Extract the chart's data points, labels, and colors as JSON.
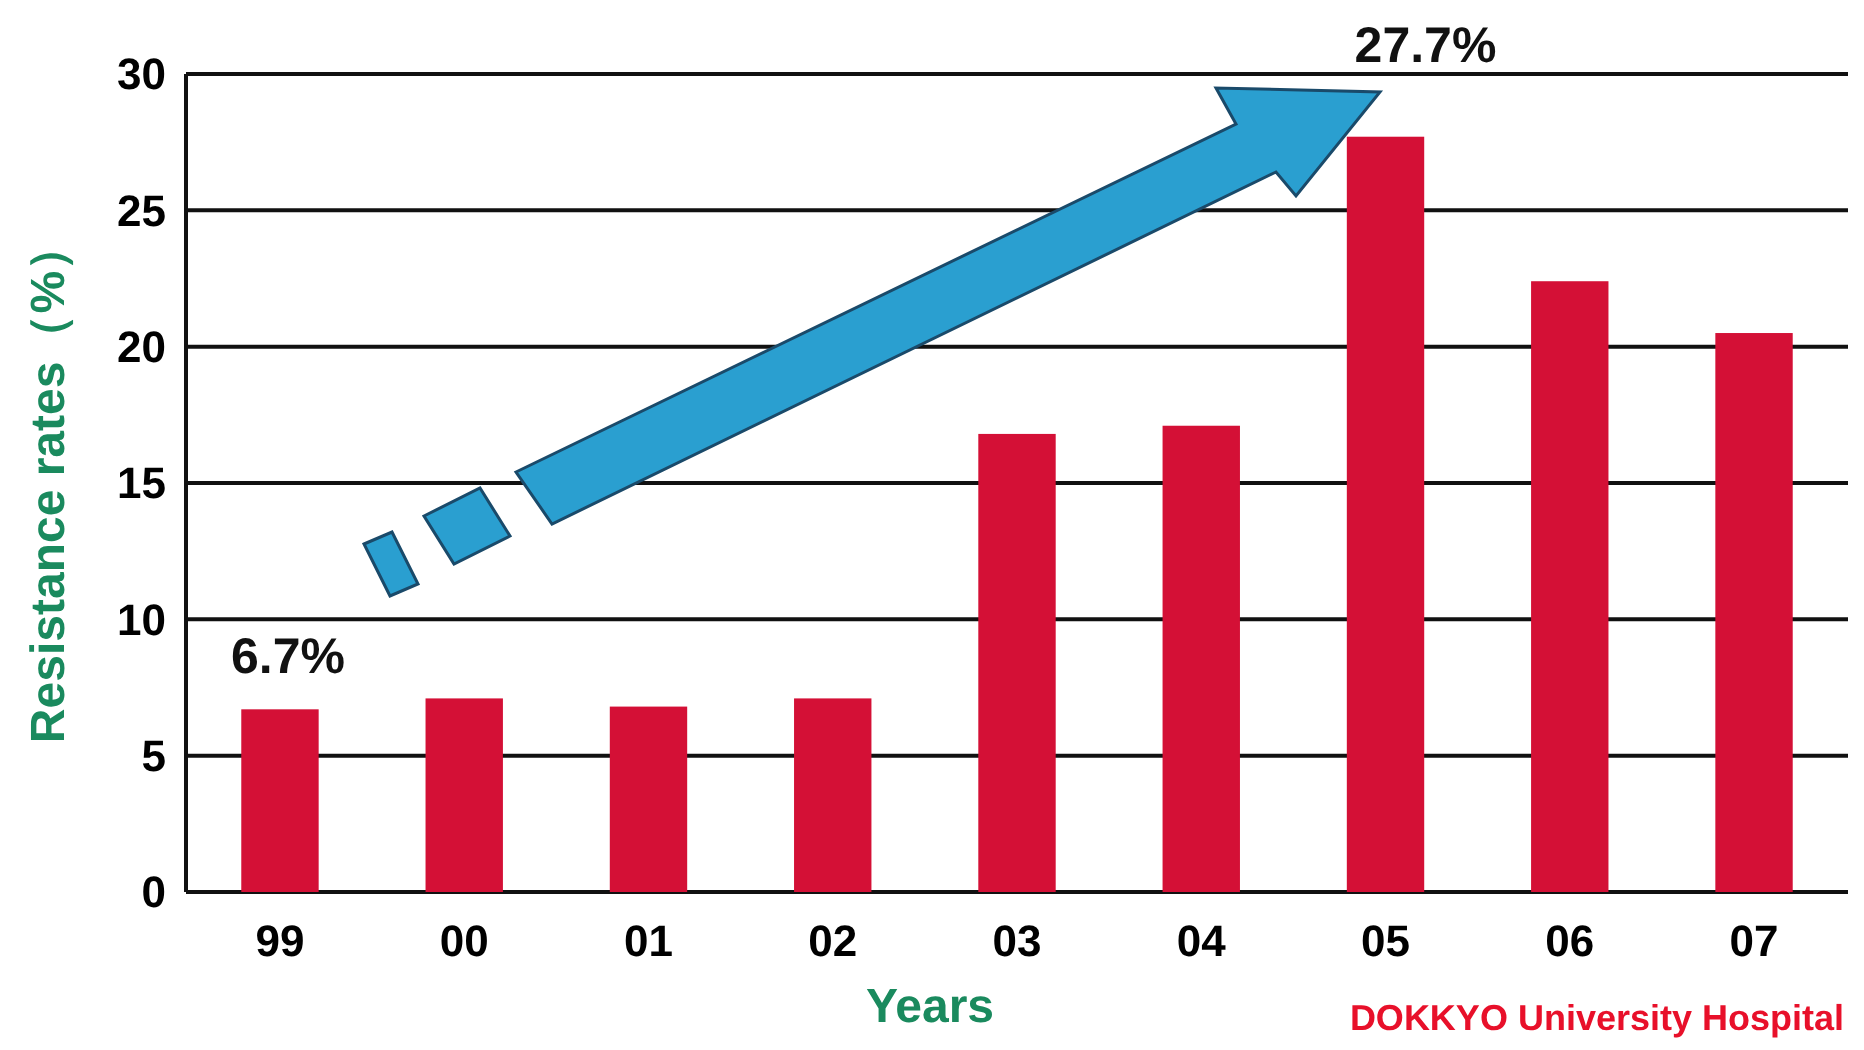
{
  "chart_data": {
    "type": "bar",
    "xlabel": "Years",
    "ylabel": "Resistance rates（%）",
    "categories": [
      "99",
      "00",
      "01",
      "02",
      "03",
      "04",
      "05",
      "06",
      "07"
    ],
    "values": [
      6.7,
      7.1,
      6.8,
      7.1,
      16.8,
      17.1,
      27.7,
      22.4,
      20.5
    ],
    "color": "#d41036",
    "ylim": [
      0,
      30
    ],
    "yticks": [
      0,
      5,
      10,
      15,
      20,
      25,
      30
    ],
    "grid": "y",
    "annotations": [
      {
        "text": "6.7%",
        "x": "99",
        "y": 6.7
      },
      {
        "text": "27.7%",
        "x": "05",
        "y": 27.7
      },
      "DOKKYO University  Hospital"
    ]
  }
}
